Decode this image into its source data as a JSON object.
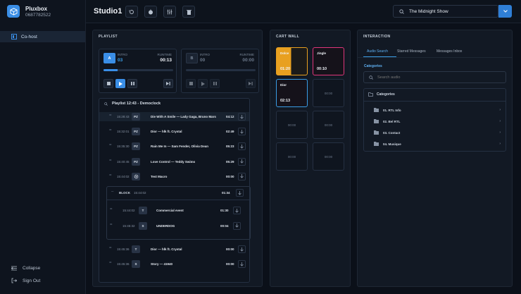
{
  "brand": {
    "name": "Pluxbox",
    "phone": "0687782522"
  },
  "sidebar": {
    "active_item": "Co-host",
    "collapse": "Collapse",
    "signout": "Sign Out"
  },
  "header": {
    "title": "Studio1",
    "show": "The Midnight Show"
  },
  "playlist_panel": {
    "title": "PLAYLIST",
    "player_a": {
      "badge": "A",
      "intro_label": "INTRO",
      "intro": "03",
      "runtime_label": "RUNTIME",
      "runtime": "00:13",
      "progress": 0.2
    },
    "player_b": {
      "badge": "B",
      "intro_label": "INTRO",
      "intro": "00",
      "runtime_label": "RUNTIME",
      "runtime": "00:00",
      "progress": 0
    },
    "list_title": "Playlist 12:43 - Democlock",
    "rows": [
      {
        "time": "15:28:43",
        "type": "PZ",
        "title": "Die With A Smile — Lady Gaga, Bruno Mars",
        "duration": "04:12"
      },
      {
        "time": "15:32:01",
        "type": "PZ",
        "title": "Dior — hlk ft. Crystal",
        "duration": "02:49"
      },
      {
        "time": "15:35:30",
        "type": "PZ",
        "title": "Rain Me In — Sam Fender, Olivia Dean",
        "duration": "05:23"
      },
      {
        "time": "15:40:45",
        "type": "PZ",
        "title": "Love Control — Teddy Swims",
        "duration": "05:29"
      },
      {
        "time": "15:44:02",
        "type": "gear",
        "title": "Test Macro",
        "duration": "00:00"
      }
    ],
    "block": {
      "label": "BLOCK",
      "time": "15:44:02",
      "duration": "01:34",
      "rows": [
        {
          "time": "15:44:02",
          "type": "T",
          "title": "Commercial event",
          "duration": "01:30"
        },
        {
          "time": "15:45:32",
          "type": "S",
          "title": "UNDERDOG",
          "duration": "00:04"
        }
      ]
    },
    "rows_after": [
      {
        "time": "15:45:36",
        "type": "T",
        "title": "Dior — hlk ft. Crystal",
        "duration": "00:00"
      },
      {
        "time": "15:45:36",
        "type": "S",
        "title": "Story — 41940",
        "duration": "00:00"
      }
    ]
  },
  "cart_wall": {
    "title": "CART WALL",
    "carts": [
      {
        "name": "Dolce",
        "time": "01:20",
        "color": "#e8a020"
      },
      {
        "name": "Jingle",
        "time": "00:10",
        "color": "#e0357a"
      },
      {
        "name": "Dior",
        "time": "02:13",
        "color": "#3a9de6"
      },
      {
        "name": "",
        "time": "00:00",
        "color": ""
      },
      {
        "name": "",
        "time": "00:00",
        "color": ""
      },
      {
        "name": "",
        "time": "00:00",
        "color": ""
      },
      {
        "name": "",
        "time": "00:00",
        "color": ""
      },
      {
        "name": "",
        "time": "00:00",
        "color": ""
      }
    ]
  },
  "interaction": {
    "title": "INTERACTION",
    "tabs": [
      "Audio Search",
      "Starred Messages",
      "Messages Inbox"
    ],
    "categories_label": "Categories",
    "search_placeholder": "Search audio",
    "tree_root": "Categories",
    "categories": [
      "01. RTL Info",
      "02. Bel RTL",
      "03. Contact",
      "04. Musique"
    ]
  },
  "colors": {
    "accent": "#3a8ee6",
    "background": "#0b1019",
    "panel": "#121924"
  }
}
